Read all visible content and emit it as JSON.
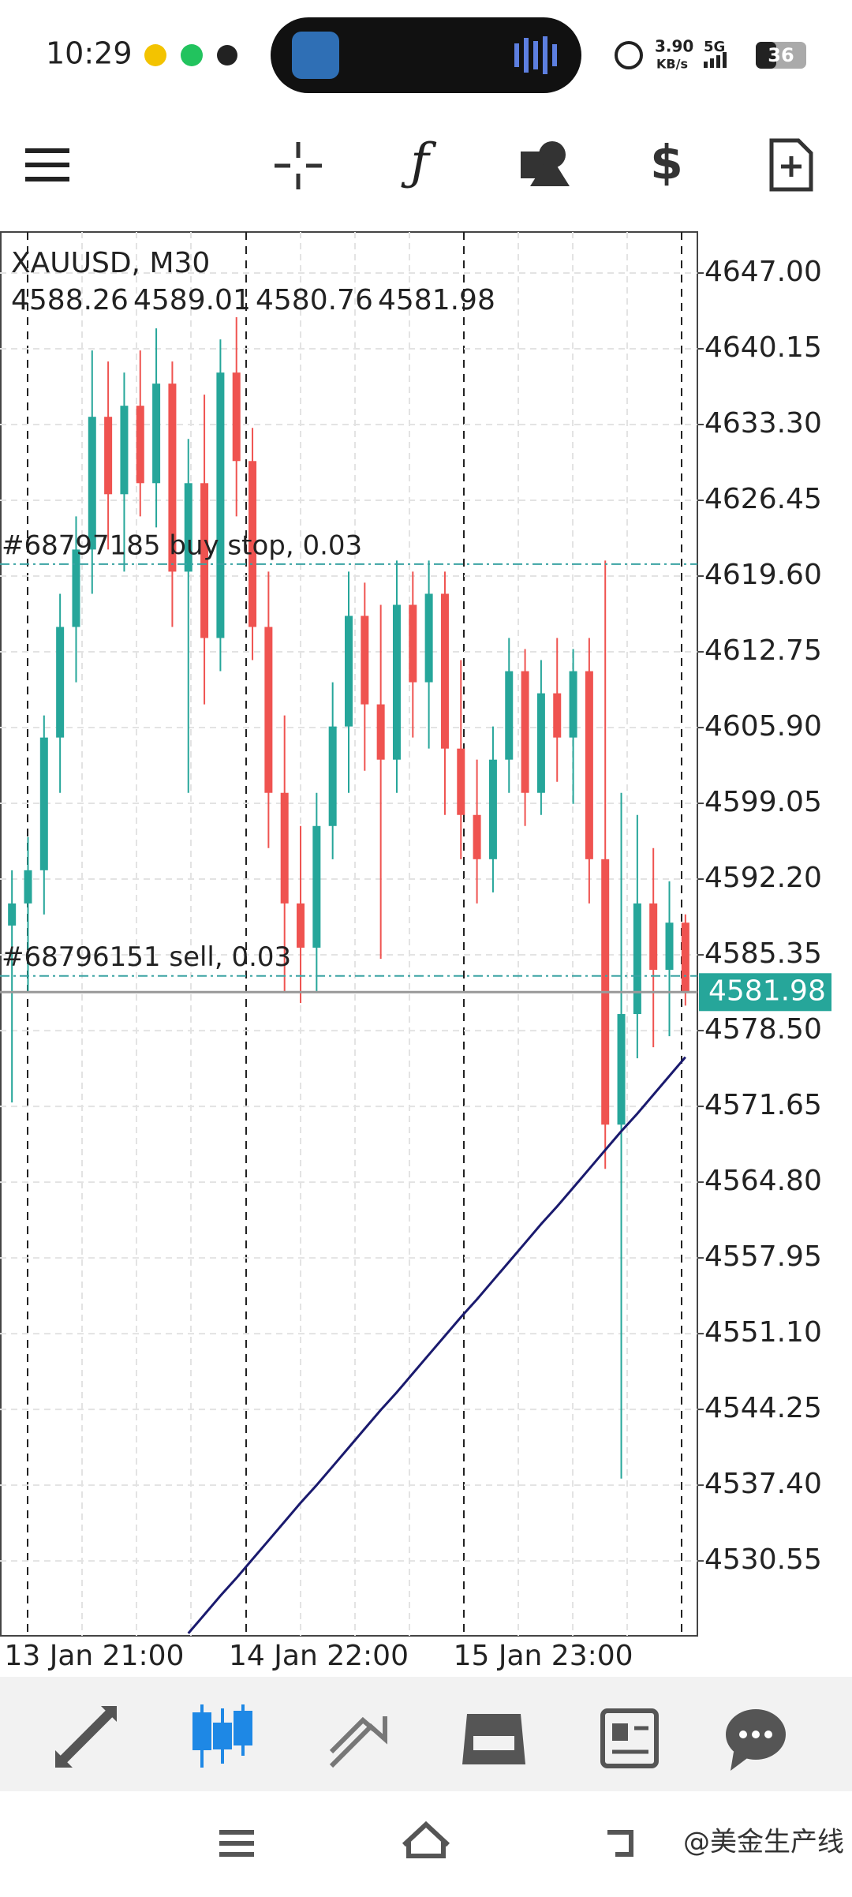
{
  "status_bar": {
    "time": "10:29",
    "net_speed": "3.90",
    "net_unit": "KB/s",
    "network": "5G",
    "battery": "36"
  },
  "chart_data": {
    "type": "candlestick",
    "title": "XAUUSD, M30",
    "up_color": "#26a69a",
    "down_color": "#ef5350",
    "grid": true,
    "categories": [
      null,
      "13 Jan 21:00",
      null,
      null,
      null,
      null,
      null,
      null,
      null,
      null,
      null,
      null,
      null,
      null,
      null,
      "14 Jan 22:00",
      null,
      null,
      null,
      null,
      null,
      null,
      null,
      null,
      null,
      null,
      null,
      null,
      null,
      "15 Jan 23:00",
      null,
      null,
      null,
      null,
      null,
      null,
      null,
      null,
      null,
      null,
      null,
      null,
      null
    ],
    "candles": [
      [
        4588,
        4593,
        4572,
        4590
      ],
      [
        4590,
        4596,
        4582,
        4593
      ],
      [
        4593,
        4607,
        4589,
        4605
      ],
      [
        4605,
        4618,
        4600,
        4615
      ],
      [
        4615,
        4625,
        4610,
        4622
      ],
      [
        4622,
        4640,
        4618,
        4634
      ],
      [
        4634,
        4639,
        4622,
        4627
      ],
      [
        4627,
        4638,
        4620,
        4635
      ],
      [
        4635,
        4640,
        4625,
        4628
      ],
      [
        4628,
        4642,
        4624,
        4637
      ],
      [
        4637,
        4639,
        4615,
        4620
      ],
      [
        4620,
        4632,
        4600,
        4628
      ],
      [
        4628,
        4636,
        4608,
        4614
      ],
      [
        4614,
        4641,
        4611,
        4638
      ],
      [
        4638,
        4643,
        4625,
        4630
      ],
      [
        4630,
        4633,
        4612,
        4615
      ],
      [
        4615,
        4620,
        4595,
        4600
      ],
      [
        4600,
        4607,
        4582,
        4590
      ],
      [
        4590,
        4597,
        4581,
        4586
      ],
      [
        4586,
        4600,
        4582,
        4597
      ],
      [
        4597,
        4610,
        4594,
        4606
      ],
      [
        4606,
        4620,
        4600,
        4616
      ],
      [
        4616,
        4619,
        4602,
        4608
      ],
      [
        4608,
        4617,
        4585,
        4603
      ],
      [
        4603,
        4621,
        4600,
        4617
      ],
      [
        4617,
        4620,
        4605,
        4610
      ],
      [
        4610,
        4621,
        4604,
        4618
      ],
      [
        4618,
        4620,
        4598,
        4604
      ],
      [
        4604,
        4612,
        4594,
        4598
      ],
      [
        4598,
        4603,
        4590,
        4594
      ],
      [
        4594,
        4606,
        4591,
        4603
      ],
      [
        4603,
        4614,
        4600,
        4611
      ],
      [
        4611,
        4613,
        4597,
        4600
      ],
      [
        4600,
        4612,
        4598,
        4609
      ],
      [
        4609,
        4614,
        4601,
        4605
      ],
      [
        4605,
        4613,
        4599,
        4611
      ],
      [
        4611,
        4614,
        4590,
        4594
      ],
      [
        4594,
        4621,
        4566,
        4570
      ],
      [
        4570,
        4600,
        4538,
        4580
      ],
      [
        4580,
        4598,
        4576,
        4590
      ],
      [
        4590,
        4595,
        4577,
        4584
      ],
      [
        4584,
        4592,
        4578,
        4588.26
      ],
      [
        4588.26,
        4589.01,
        4580.76,
        4581.98
      ]
    ],
    "ma": {
      "color": "#1a1a6e",
      "values": [
        null,
        null,
        null,
        null,
        null,
        null,
        null,
        null,
        null,
        null,
        null,
        4524.0,
        4525.7,
        4527.4,
        4529.0,
        4530.7,
        4532.4,
        4534.1,
        4535.8,
        4537.4,
        4539.1,
        4540.8,
        4542.5,
        4544.2,
        4545.8,
        4547.5,
        4549.2,
        4550.9,
        4552.6,
        4554.2,
        4555.9,
        4557.6,
        4559.3,
        4561.0,
        4562.6,
        4564.3,
        4566.0,
        4567.7,
        4569.4,
        4571.0,
        4572.7,
        4574.4,
        4576.1
      ]
    },
    "orders": [
      {
        "label": "#68797185 buy stop, 0.03",
        "price": 4620.68
      },
      {
        "label": "#68796151 sell, 0.03",
        "price": 4583.45
      }
    ],
    "ylim": [
      4523.78,
      4650.71
    ],
    "yticks": [
      {
        "value": 4647.0,
        "label": "4647.00"
      },
      4640.15,
      {
        "value": 4633.3,
        "label": "4633.30"
      },
      4626.45,
      {
        "value": 4619.6,
        "label": "4619.60"
      },
      4612.75,
      {
        "value": 4605.9,
        "label": "4605.90"
      },
      4599.05,
      {
        "value": 4592.2,
        "label": "4592.20"
      },
      4585.35,
      {
        "value": 4578.5,
        "label": "4578.50"
      },
      4571.65,
      {
        "value": 4564.8,
        "label": "4564.80"
      },
      4557.95,
      {
        "value": 4551.1,
        "label": "4551.10"
      },
      4544.25,
      {
        "value": 4537.4,
        "label": "4537.40"
      },
      4530.55
    ]
  },
  "watermark": "@美金生产线"
}
